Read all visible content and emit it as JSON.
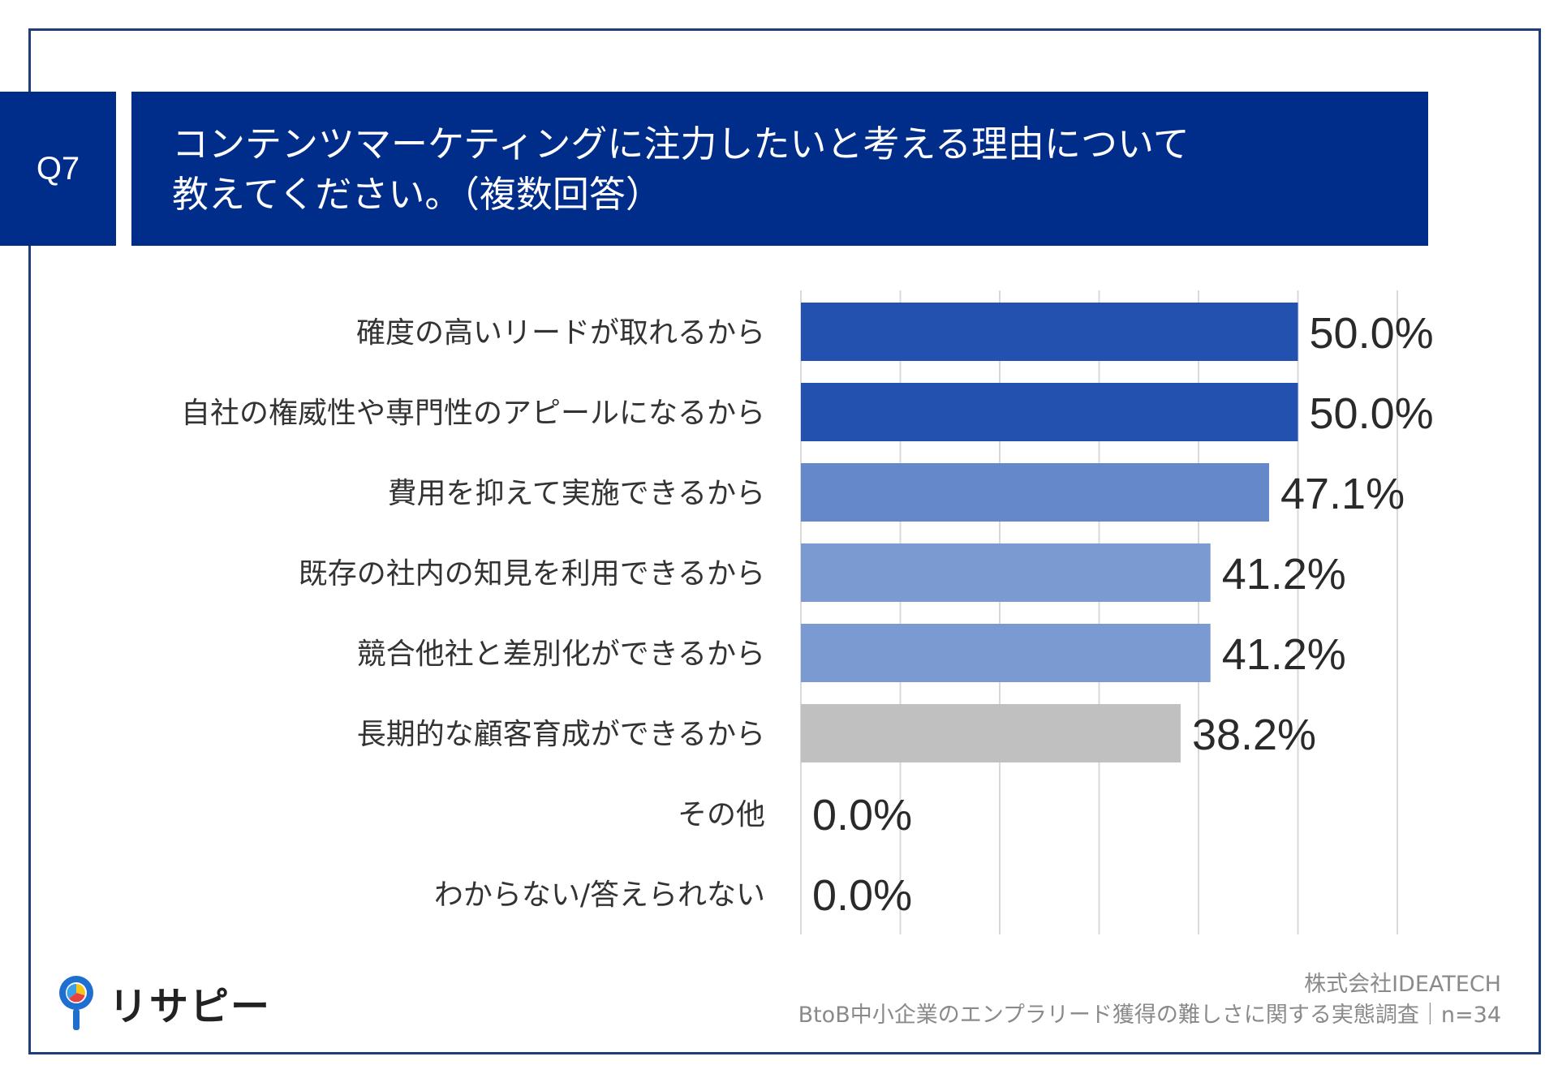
{
  "header": {
    "question_badge": "Q7",
    "title_line1": "コンテンツマーケティングに注力したいと考える理由について",
    "title_line2": "教えてください。（複数回答）"
  },
  "chart_data": {
    "type": "bar",
    "orientation": "horizontal",
    "categories": [
      "確度の高いリードが取れるから",
      "自社の権威性や専門性のアピールになるから",
      "費用を抑えて実施できるから",
      "既存の社内の知見を利用できるから",
      "競合他社と差別化ができるから",
      "長期的な顧客育成ができるから",
      "その他",
      "わからない/答えられない"
    ],
    "values": [
      50.0,
      50.0,
      47.1,
      41.2,
      41.2,
      38.2,
      0.0,
      0.0
    ],
    "value_labels": [
      "50.0%",
      "50.0%",
      "47.1%",
      "41.2%",
      "41.2%",
      "38.2%",
      "0.0%",
      "0.0%"
    ],
    "bar_colors": [
      "#2251b0",
      "#2251b0",
      "#6488c9",
      "#7b9ad2",
      "#7b9ad2",
      "#c0c0c0",
      "#c0c0c0",
      "#c0c0c0"
    ],
    "xlim": [
      0,
      60
    ],
    "grid": true,
    "legend": "none"
  },
  "logo": {
    "text": "リサピー"
  },
  "footer": {
    "company": "株式会社IDEATECH",
    "survey": "BtoB中小企業のエンプラリード獲得の難しさに関する実態調査｜n=34"
  }
}
